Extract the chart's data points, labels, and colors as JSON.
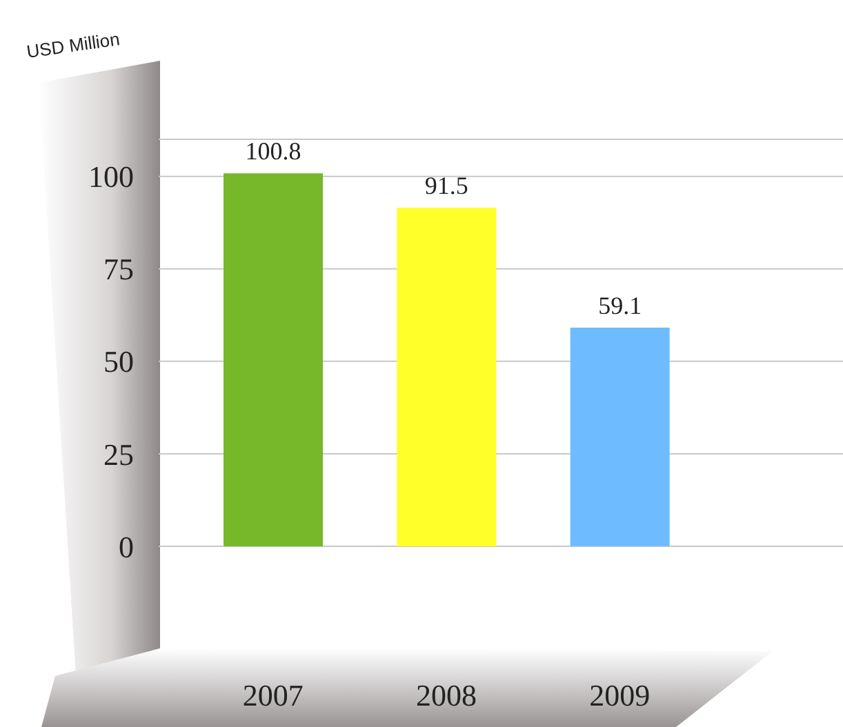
{
  "chart_data": {
    "type": "bar",
    "ylabel": "USD Million",
    "categories": [
      "2007",
      "2008",
      "2009"
    ],
    "values": [
      100.8,
      91.5,
      59.1
    ],
    "colors": [
      "#76b82a",
      "#ffff2a",
      "#6ebcff"
    ],
    "ylim": [
      0,
      110
    ],
    "yticks": [
      0,
      25,
      50,
      75,
      100
    ],
    "grid": "y",
    "data_labels": true
  }
}
